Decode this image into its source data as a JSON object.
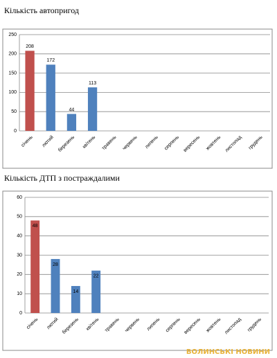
{
  "chart_data": [
    {
      "type": "bar",
      "title": "Кількість автопригод",
      "categories": [
        "січень",
        "лютий",
        "березень",
        "квітень",
        "травень",
        "червень",
        "липень",
        "серпень",
        "вересень",
        "жовтень",
        "листопад",
        "грудень"
      ],
      "values": [
        208,
        172,
        44,
        113,
        null,
        null,
        null,
        null,
        null,
        null,
        null,
        null
      ],
      "colors": [
        "#c0504d",
        "#4f81bd",
        "#4f81bd",
        "#4f81bd",
        "#4f81bd",
        "#4f81bd",
        "#4f81bd",
        "#4f81bd",
        "#4f81bd",
        "#4f81bd",
        "#4f81bd",
        "#4f81bd"
      ],
      "ylim": [
        0,
        250
      ],
      "yticks": [
        0,
        50,
        100,
        150,
        200,
        250
      ],
      "grid": true
    },
    {
      "type": "bar",
      "title": "Кількість ДТП з постраждалими",
      "categories": [
        "січень",
        "лютий",
        "березень",
        "квітень",
        "травень",
        "червень",
        "липень",
        "серпень",
        "вересень",
        "жовтень",
        "листопад",
        "грудень"
      ],
      "values": [
        48,
        28,
        14,
        22,
        null,
        null,
        null,
        null,
        null,
        null,
        null,
        null
      ],
      "colors": [
        "#c0504d",
        "#4f81bd",
        "#4f81bd",
        "#4f81bd",
        "#4f81bd",
        "#4f81bd",
        "#4f81bd",
        "#4f81bd",
        "#4f81bd",
        "#4f81bd",
        "#4f81bd",
        "#4f81bd"
      ],
      "ylim": [
        0,
        60
      ],
      "yticks": [
        0,
        10,
        20,
        30,
        40,
        50,
        60
      ],
      "grid": true
    }
  ],
  "watermark": "ВОЛИНСЬКІ НОВИНИ"
}
